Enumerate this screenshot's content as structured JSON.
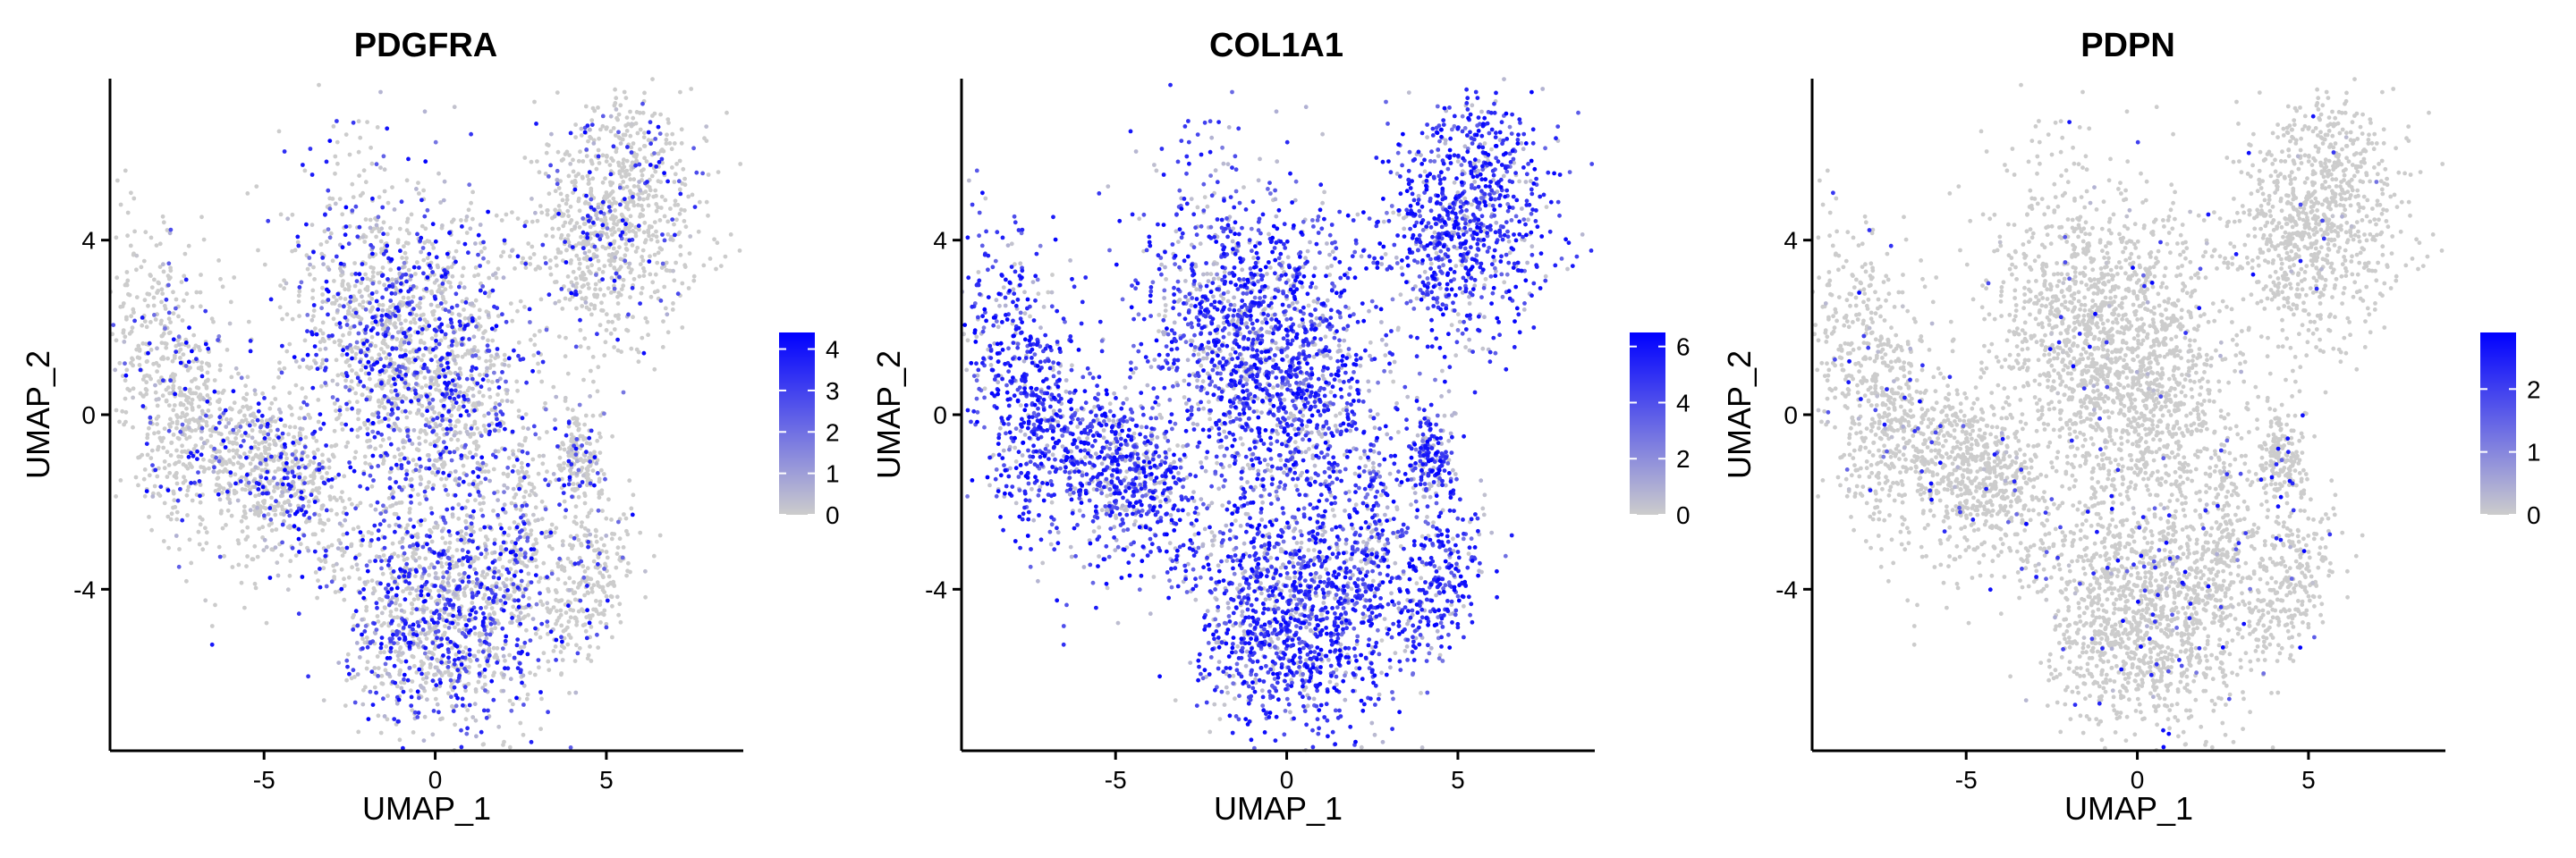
{
  "chart_data": [
    {
      "type": "scatter",
      "title": "PDGFRA",
      "xlabel": "UMAP_1",
      "ylabel": "UMAP_2",
      "xlim": [
        -9.5,
        9.0
      ],
      "ylim": [
        -7.7,
        7.7
      ],
      "x_ticks": [
        -5,
        0,
        5
      ],
      "x_tick_labels": [
        "-5",
        "0",
        "5"
      ],
      "y_ticks": [
        -4,
        0,
        4
      ],
      "y_tick_labels": [
        "-4",
        "0",
        "4"
      ],
      "grid": false,
      "legend": {
        "placement": "right",
        "min": 0,
        "max": 4.4,
        "ticks": [
          0,
          1,
          2,
          3,
          4
        ],
        "tick_labels": [
          "0",
          "1",
          "2",
          "3",
          "4"
        ]
      },
      "colors": {
        "low": "#cccccc",
        "high": "#0000ff"
      },
      "clusters": [
        {
          "cx": -0.7,
          "cy": 1.3,
          "sx": 1.6,
          "sy": 2.2,
          "rot": 35,
          "n": 1900,
          "expr": 0.32
        },
        {
          "cx": 0.2,
          "cy": -4.7,
          "sx": 1.4,
          "sy": 1.3,
          "rot": 0,
          "n": 1200,
          "expr": 0.38
        },
        {
          "cx": 5.2,
          "cy": 4.5,
          "sx": 1.2,
          "sy": 1.4,
          "rot": -20,
          "n": 900,
          "expr": 0.12
        },
        {
          "cx": -7.6,
          "cy": 0.4,
          "sx": 0.8,
          "sy": 2.0,
          "rot": 15,
          "n": 600,
          "expr": 0.1
        },
        {
          "cx": -4.6,
          "cy": -1.4,
          "sx": 1.4,
          "sy": 0.8,
          "rot": -40,
          "n": 700,
          "expr": 0.22
        },
        {
          "cx": 4.2,
          "cy": -1.1,
          "sx": 0.35,
          "sy": 0.7,
          "rot": 0,
          "n": 180,
          "expr": 0.15
        },
        {
          "cx": 4.4,
          "cy": -3.8,
          "sx": 0.6,
          "sy": 1.0,
          "rot": -25,
          "n": 280,
          "expr": 0.08
        },
        {
          "cx": 2.6,
          "cy": -2.8,
          "sx": 0.4,
          "sy": 1.2,
          "rot": 0,
          "n": 180,
          "expr": 0.28
        }
      ]
    },
    {
      "type": "scatter",
      "title": "COL1A1",
      "xlabel": "UMAP_1",
      "ylabel": "UMAP_2",
      "xlim": [
        -9.5,
        9.0
      ],
      "ylim": [
        -7.7,
        7.7
      ],
      "x_ticks": [
        -5,
        0,
        5
      ],
      "x_tick_labels": [
        "-5",
        "0",
        "5"
      ],
      "y_ticks": [
        -4,
        0,
        4
      ],
      "y_tick_labels": [
        "-4",
        "0",
        "4"
      ],
      "grid": false,
      "legend": {
        "placement": "right",
        "min": 0,
        "max": 6.5,
        "ticks": [
          0,
          2,
          4,
          6
        ],
        "tick_labels": [
          "0",
          "2",
          "4",
          "6"
        ]
      },
      "colors": {
        "low": "#cccccc",
        "high": "#0000ff"
      },
      "clusters": [
        {
          "cx": -0.7,
          "cy": 1.3,
          "sx": 1.6,
          "sy": 2.2,
          "rot": 35,
          "n": 1900,
          "expr": 0.68
        },
        {
          "cx": 0.2,
          "cy": -4.7,
          "sx": 1.4,
          "sy": 1.3,
          "rot": 0,
          "n": 1200,
          "expr": 0.72
        },
        {
          "cx": 5.2,
          "cy": 4.5,
          "sx": 1.2,
          "sy": 1.4,
          "rot": -20,
          "n": 900,
          "expr": 0.82
        },
        {
          "cx": -7.6,
          "cy": 0.4,
          "sx": 0.8,
          "sy": 2.0,
          "rot": 15,
          "n": 600,
          "expr": 0.78
        },
        {
          "cx": -4.6,
          "cy": -1.4,
          "sx": 1.4,
          "sy": 0.8,
          "rot": -40,
          "n": 700,
          "expr": 0.72
        },
        {
          "cx": 4.2,
          "cy": -1.1,
          "sx": 0.35,
          "sy": 0.7,
          "rot": 0,
          "n": 180,
          "expr": 0.7
        },
        {
          "cx": 4.4,
          "cy": -3.8,
          "sx": 0.6,
          "sy": 1.0,
          "rot": -25,
          "n": 280,
          "expr": 0.82
        },
        {
          "cx": 2.6,
          "cy": -2.8,
          "sx": 0.4,
          "sy": 1.2,
          "rot": 0,
          "n": 180,
          "expr": 0.7
        }
      ]
    },
    {
      "type": "scatter",
      "title": "PDPN",
      "xlabel": "UMAP_1",
      "ylabel": "UMAP_2",
      "xlim": [
        -9.5,
        9.0
      ],
      "ylim": [
        -7.7,
        7.7
      ],
      "x_ticks": [
        -5,
        0,
        5
      ],
      "x_tick_labels": [
        "-5",
        "0",
        "5"
      ],
      "y_ticks": [
        -4,
        0,
        4
      ],
      "y_tick_labels": [
        "-4",
        "0",
        "4"
      ],
      "grid": false,
      "legend": {
        "placement": "right",
        "min": 0,
        "max": 2.9,
        "ticks": [
          0,
          1,
          2
        ],
        "tick_labels": [
          "0",
          "1",
          "2"
        ]
      },
      "colors": {
        "low": "#cccccc",
        "high": "#0000ff"
      },
      "clusters": [
        {
          "cx": -0.7,
          "cy": 1.3,
          "sx": 1.6,
          "sy": 2.2,
          "rot": 35,
          "n": 1900,
          "expr": 0.03
        },
        {
          "cx": 0.2,
          "cy": -4.7,
          "sx": 1.4,
          "sy": 1.3,
          "rot": 0,
          "n": 1200,
          "expr": 0.04
        },
        {
          "cx": 5.2,
          "cy": 4.5,
          "sx": 1.2,
          "sy": 1.4,
          "rot": -20,
          "n": 900,
          "expr": 0.02
        },
        {
          "cx": -7.6,
          "cy": 0.4,
          "sx": 0.8,
          "sy": 2.0,
          "rot": 15,
          "n": 600,
          "expr": 0.05
        },
        {
          "cx": -4.6,
          "cy": -1.4,
          "sx": 1.4,
          "sy": 0.8,
          "rot": -40,
          "n": 700,
          "expr": 0.04
        },
        {
          "cx": 4.2,
          "cy": -1.1,
          "sx": 0.35,
          "sy": 0.7,
          "rot": 0,
          "n": 180,
          "expr": 0.05
        },
        {
          "cx": 4.4,
          "cy": -3.8,
          "sx": 0.6,
          "sy": 1.0,
          "rot": -25,
          "n": 280,
          "expr": 0.03
        },
        {
          "cx": 2.6,
          "cy": -2.8,
          "sx": 0.4,
          "sy": 1.2,
          "rot": 0,
          "n": 180,
          "expr": 0.04
        }
      ]
    }
  ]
}
